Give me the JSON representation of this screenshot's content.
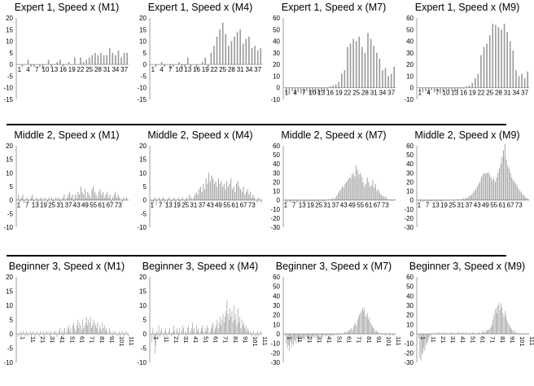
{
  "chart_data": [
    {
      "id": "e1m1",
      "type": "bar",
      "title": "Expert 1, Speed x (M1)",
      "ylim": [
        -15,
        20
      ],
      "yticks": [
        -15,
        -10,
        -5,
        0,
        5,
        10,
        15,
        20
      ],
      "x_start": 1,
      "x_end": 38,
      "xtick_labels": [
        "1",
        "4",
        "7",
        "10",
        "13",
        "16",
        "19",
        "22",
        "25",
        "28",
        "31",
        "34",
        "37"
      ],
      "values": [
        0,
        -1,
        0,
        2,
        -1,
        -1,
        0,
        -1,
        -2,
        0,
        2,
        -1,
        0,
        1,
        2,
        -1,
        0,
        1,
        0,
        3,
        0,
        3,
        1,
        2,
        3,
        4,
        5,
        4,
        5,
        4,
        4,
        7,
        5,
        4,
        6,
        3,
        5,
        5
      ]
    },
    {
      "id": "e1m4",
      "type": "bar",
      "title": "Expert 1, Speed x (M4)",
      "ylim": [
        -15,
        20
      ],
      "yticks": [
        -15,
        -10,
        -5,
        0,
        5,
        10,
        15,
        20
      ],
      "x_start": 1,
      "x_end": 38,
      "xtick_labels": [
        "1",
        "4",
        "7",
        "10",
        "13",
        "16",
        "19",
        "22",
        "25",
        "28",
        "31",
        "34",
        "37"
      ],
      "values": [
        0,
        -1,
        0,
        1,
        -1,
        0,
        -2,
        -1,
        0,
        1,
        -2,
        -1,
        3,
        -1,
        0,
        -2,
        0,
        1,
        3,
        -1,
        5,
        8,
        12,
        15,
        18,
        13,
        8,
        10,
        12,
        14,
        15,
        9,
        11,
        12,
        7,
        8,
        6,
        7
      ]
    },
    {
      "id": "e1m7",
      "type": "bar",
      "title": "Expert 1, Speed x (M7)",
      "ylim": [
        -10,
        60
      ],
      "yticks": [
        -10,
        0,
        10,
        20,
        30,
        40,
        50,
        60
      ],
      "x_start": 1,
      "x_end": 38,
      "xtick_labels": [
        "1",
        "4",
        "7",
        "10",
        "13",
        "16",
        "19",
        "22",
        "25",
        "28",
        "31",
        "34",
        "37"
      ],
      "values": [
        -5,
        -6,
        -3,
        -6,
        -4,
        -5,
        -5,
        -3,
        -6,
        -4,
        -5,
        -6,
        -4,
        -3,
        -2,
        1,
        2,
        3,
        5,
        12,
        15,
        35,
        38,
        42,
        40,
        44,
        35,
        30,
        47,
        42,
        36,
        30,
        25,
        15,
        17,
        10,
        12,
        18
      ]
    },
    {
      "id": "e1m9",
      "type": "bar",
      "title": "Expert 1, Speed x (M9)",
      "ylim": [
        -10,
        60
      ],
      "yticks": [
        -10,
        0,
        10,
        20,
        30,
        40,
        50,
        60
      ],
      "x_start": 1,
      "x_end": 38,
      "xtick_labels": [
        "1",
        "4",
        "7",
        "10",
        "13",
        "16",
        "19",
        "22",
        "25",
        "28",
        "31",
        "34",
        "37"
      ],
      "values": [
        -3,
        -4,
        -3,
        -5,
        -2,
        -4,
        -3,
        -5,
        -4,
        -2,
        -3,
        -2,
        -4,
        -2,
        -1,
        -1,
        1,
        2,
        4,
        8,
        12,
        28,
        35,
        38,
        45,
        55,
        54,
        52,
        50,
        55,
        48,
        40,
        32,
        15,
        10,
        12,
        8,
        14
      ]
    },
    {
      "id": "m2m1",
      "type": "bar",
      "title": "Middle 2, Speed x (M1)",
      "ylim": [
        -10,
        20
      ],
      "yticks": [
        -10,
        -5,
        0,
        5,
        10,
        15,
        20
      ],
      "x_start": 1,
      "x_end": 80,
      "xtick_labels": [
        "1",
        "7",
        "13",
        "19",
        "25",
        "31",
        "37",
        "43",
        "49",
        "55",
        "61",
        "67",
        "73"
      ],
      "values": [
        2,
        -1,
        1,
        2,
        -1,
        0,
        1,
        -1,
        0,
        1,
        2,
        -1,
        0,
        1,
        -1,
        0,
        1,
        -1,
        0,
        1,
        0,
        -1,
        1,
        0,
        1,
        -1,
        0,
        1,
        0,
        1,
        -1,
        0,
        1,
        2,
        0,
        1,
        2,
        3,
        1,
        2,
        -1,
        2,
        1,
        3,
        2,
        5,
        3,
        2,
        4,
        1,
        3,
        2,
        1,
        4,
        5,
        3,
        2,
        1,
        3,
        4,
        2,
        3,
        1,
        2,
        3,
        1,
        2,
        -1,
        1,
        2,
        3,
        1,
        2,
        1,
        0,
        -1,
        1,
        0,
        1,
        0
      ]
    },
    {
      "id": "m2m4",
      "type": "bar",
      "title": "Middle 2, Speed x (M4)",
      "ylim": [
        -10,
        20
      ],
      "yticks": [
        -10,
        -5,
        0,
        5,
        10,
        15,
        20
      ],
      "x_start": 1,
      "x_end": 80,
      "xtick_labels": [
        "1",
        "7",
        "13",
        "19",
        "25",
        "31",
        "37",
        "43",
        "49",
        "55",
        "61",
        "67",
        "73"
      ],
      "values": [
        -2,
        -1,
        1,
        -2,
        0,
        1,
        -1,
        0,
        1,
        -1,
        0,
        -2,
        1,
        0,
        -1,
        0,
        1,
        -1,
        0,
        1,
        -1,
        0,
        1,
        0,
        -1,
        1,
        0,
        2,
        1,
        0,
        1,
        2,
        3,
        2,
        4,
        5,
        3,
        6,
        4,
        8,
        6,
        10,
        7,
        9,
        8,
        6,
        7,
        5,
        8,
        6,
        7,
        5,
        6,
        4,
        7,
        5,
        6,
        8,
        4,
        5,
        3,
        6,
        7,
        5,
        4,
        3,
        5,
        2,
        3,
        4,
        2,
        3,
        1,
        2,
        1,
        0,
        -1,
        1,
        0,
        -1
      ]
    },
    {
      "id": "m2m7",
      "type": "bar",
      "title": "Middle 2, Speed x (M7)",
      "ylim": [
        -30,
        60
      ],
      "yticks": [
        -30,
        -20,
        -10,
        0,
        10,
        20,
        30,
        40,
        50,
        60
      ],
      "x_start": 1,
      "x_end": 80,
      "xtick_labels": [
        "1",
        "7",
        "13",
        "19",
        "25",
        "31",
        "37",
        "43",
        "49",
        "55",
        "61",
        "67",
        "73"
      ],
      "values": [
        -2,
        -3,
        -1,
        -2,
        -3,
        -1,
        -2,
        -1,
        -3,
        -2,
        -1,
        -2,
        -1,
        -3,
        -2,
        -1,
        -2,
        -1,
        -1,
        -2,
        -1,
        -2,
        -1,
        -1,
        -2,
        -1,
        -1,
        -2,
        -1,
        -1,
        0,
        1,
        0,
        1,
        2,
        1,
        3,
        5,
        8,
        10,
        12,
        15,
        14,
        18,
        20,
        22,
        25,
        24,
        28,
        30,
        26,
        38,
        33,
        28,
        30,
        26,
        20,
        15,
        18,
        25,
        20,
        15,
        16,
        22,
        14,
        18,
        10,
        12,
        8,
        6,
        5,
        3,
        4,
        2,
        1,
        0,
        1,
        -1,
        0,
        1
      ]
    },
    {
      "id": "m2m9",
      "type": "bar",
      "title": "Middle 2, Speed x (M9)",
      "ylim": [
        -30,
        60
      ],
      "yticks": [
        -30,
        -20,
        -10,
        0,
        10,
        20,
        30,
        40,
        50,
        60
      ],
      "x_start": 1,
      "x_end": 80,
      "xtick_labels": [
        "1",
        "7",
        "13",
        "19",
        "25",
        "31",
        "37",
        "43",
        "49",
        "55",
        "61",
        "67",
        "73"
      ],
      "values": [
        -1,
        -2,
        -1,
        -2,
        -1,
        -1,
        -2,
        -1,
        -1,
        -2,
        -1,
        -1,
        -2,
        -1,
        -1,
        -1,
        -2,
        -1,
        -1,
        0,
        -1,
        0,
        -1,
        0,
        0,
        -1,
        0,
        1,
        0,
        1,
        0,
        1,
        2,
        1,
        3,
        2,
        4,
        5,
        6,
        8,
        10,
        12,
        15,
        18,
        20,
        25,
        28,
        30,
        29,
        30,
        31,
        28,
        25,
        22,
        24,
        20,
        25,
        30,
        35,
        40,
        48,
        55,
        62,
        45,
        38,
        35,
        30,
        25,
        22,
        20,
        18,
        15,
        12,
        10,
        8,
        6,
        5,
        3,
        2,
        1
      ]
    },
    {
      "id": "b3m1",
      "type": "bar",
      "title": "Beginner 3, Speed x (M1)",
      "ylim": [
        -10,
        20
      ],
      "yticks": [
        -10,
        -5,
        0,
        5,
        10,
        15,
        20
      ],
      "x_start": 1,
      "x_end": 112,
      "xtick_labels": [
        "1",
        "11",
        "21",
        "31",
        "41",
        "51",
        "61",
        "71",
        "81",
        "91",
        "101",
        "111"
      ],
      "values": [
        -1,
        0,
        1,
        -1,
        0,
        1,
        0,
        -1,
        1,
        0,
        -1,
        0,
        1,
        -1,
        0,
        1,
        0,
        -1,
        0,
        1,
        0,
        -1,
        1,
        0,
        0,
        1,
        -1,
        0,
        1,
        0,
        1,
        0,
        -1,
        1,
        0,
        0,
        1,
        0,
        1,
        -1,
        0,
        1,
        2,
        0,
        1,
        -1,
        1,
        2,
        0,
        1,
        2,
        3,
        1,
        2,
        0,
        3,
        4,
        2,
        1,
        3,
        5,
        2,
        4,
        3,
        1,
        5,
        2,
        3,
        4,
        6,
        3,
        5,
        4,
        6,
        2,
        3,
        5,
        4,
        3,
        2,
        4,
        1,
        3,
        2,
        1,
        4,
        2,
        3,
        1,
        2,
        1,
        0,
        2,
        1,
        0,
        -1,
        1,
        0,
        1,
        0,
        -1,
        0,
        1,
        -1,
        0,
        1,
        0,
        -1,
        0,
        1,
        0,
        -1
      ]
    },
    {
      "id": "b3m4",
      "type": "bar",
      "title": "Beginner 3, Speed x (M4)",
      "ylim": [
        -10,
        20
      ],
      "yticks": [
        -10,
        -5,
        0,
        5,
        10,
        15,
        20
      ],
      "x_start": 1,
      "x_end": 112,
      "xtick_labels": [
        "1",
        "11",
        "21",
        "31",
        "41",
        "51",
        "61",
        "71",
        "81",
        "91",
        "101",
        "111"
      ],
      "values": [
        -3,
        2,
        -2,
        -7,
        -4,
        1,
        -2,
        3,
        -1,
        1,
        2,
        0,
        -1,
        1,
        2,
        -1,
        0,
        1,
        2,
        0,
        -1,
        1,
        3,
        1,
        0,
        2,
        1,
        -1,
        2,
        0,
        1,
        3,
        2,
        0,
        1,
        -1,
        2,
        3,
        0,
        1,
        2,
        4,
        1,
        2,
        0,
        3,
        1,
        2,
        0,
        1,
        2,
        3,
        1,
        0,
        2,
        1,
        3,
        2,
        0,
        1,
        2,
        3,
        4,
        1,
        2,
        3,
        5,
        2,
        4,
        6,
        3,
        5,
        7,
        4,
        6,
        8,
        12,
        7,
        5,
        9,
        6,
        8,
        4,
        10,
        5,
        7,
        3,
        9,
        4,
        6,
        2,
        5,
        3,
        4,
        2,
        3,
        1,
        2,
        1,
        0,
        1,
        -1,
        0,
        1,
        0,
        -1,
        0,
        1,
        -1,
        0,
        1,
        0
      ]
    },
    {
      "id": "b3m7",
      "type": "bar",
      "title": "Beginner 3, Speed x (M7)",
      "ylim": [
        -30,
        60
      ],
      "yticks": [
        -30,
        -20,
        -10,
        0,
        10,
        20,
        30,
        40,
        50,
        60
      ],
      "x_start": 1,
      "x_end": 112,
      "xtick_labels": [
        "1",
        "11",
        "21",
        "31",
        "41",
        "51",
        "61",
        "71",
        "81",
        "91",
        "101",
        "111"
      ],
      "values": [
        -2,
        -10,
        -15,
        -12,
        -18,
        -8,
        -14,
        -10,
        -12,
        -6,
        -8,
        -10,
        -5,
        -7,
        -9,
        -6,
        -8,
        -4,
        -6,
        -5,
        -7,
        -3,
        -5,
        -4,
        -6,
        -3,
        -4,
        -5,
        -2,
        -4,
        -3,
        -5,
        -2,
        -3,
        -4,
        -1,
        -3,
        -2,
        -4,
        -2,
        -1,
        -3,
        -2,
        -1,
        -2,
        -3,
        -1,
        -2,
        -1,
        -2,
        -1,
        0,
        -1,
        -2,
        0,
        -1,
        1,
        -1,
        0,
        1,
        2,
        1,
        3,
        2,
        4,
        3,
        5,
        6,
        4,
        8,
        10,
        12,
        9,
        15,
        18,
        20,
        22,
        25,
        28,
        24,
        27,
        20,
        18,
        22,
        15,
        18,
        12,
        10,
        8,
        6,
        5,
        3,
        4,
        2,
        1,
        2,
        0,
        1,
        -1,
        0,
        1,
        -2,
        -1,
        0,
        -1,
        -2,
        -1,
        0,
        -1,
        -2,
        -1,
        0
      ]
    },
    {
      "id": "b3m9",
      "type": "bar",
      "title": "Beginner 3, Speed x (M9)",
      "ylim": [
        -30,
        60
      ],
      "yticks": [
        -30,
        -20,
        -10,
        0,
        10,
        20,
        30,
        40,
        50,
        60
      ],
      "x_start": 1,
      "x_end": 112,
      "xtick_labels": [
        "1",
        "11",
        "21",
        "31",
        "41",
        "51",
        "61",
        "71",
        "81",
        "91",
        "101",
        "111"
      ],
      "values": [
        -5,
        -25,
        -28,
        -22,
        -20,
        -15,
        -18,
        -12,
        -10,
        -8,
        -5,
        -3,
        -2,
        -1,
        0,
        1,
        0,
        -1,
        0,
        1,
        2,
        0,
        -1,
        1,
        0,
        2,
        1,
        0,
        1,
        -1,
        0,
        1,
        0,
        2,
        1,
        0,
        1,
        -1,
        0,
        1,
        2,
        0,
        1,
        0,
        2,
        1,
        0,
        1,
        2,
        0,
        1,
        -1,
        1,
        0,
        2,
        1,
        0,
        1,
        -1,
        0,
        1,
        2,
        1,
        0,
        2,
        3,
        1,
        2,
        4,
        3,
        5,
        4,
        6,
        8,
        10,
        15,
        20,
        25,
        28,
        22,
        30,
        33,
        25,
        32,
        28,
        22,
        18,
        24,
        20,
        15,
        12,
        10,
        8,
        6,
        5,
        3,
        4,
        2,
        1,
        2,
        0,
        1,
        -1,
        0,
        1,
        -1,
        0,
        1,
        0,
        -1,
        0,
        1
      ]
    }
  ]
}
